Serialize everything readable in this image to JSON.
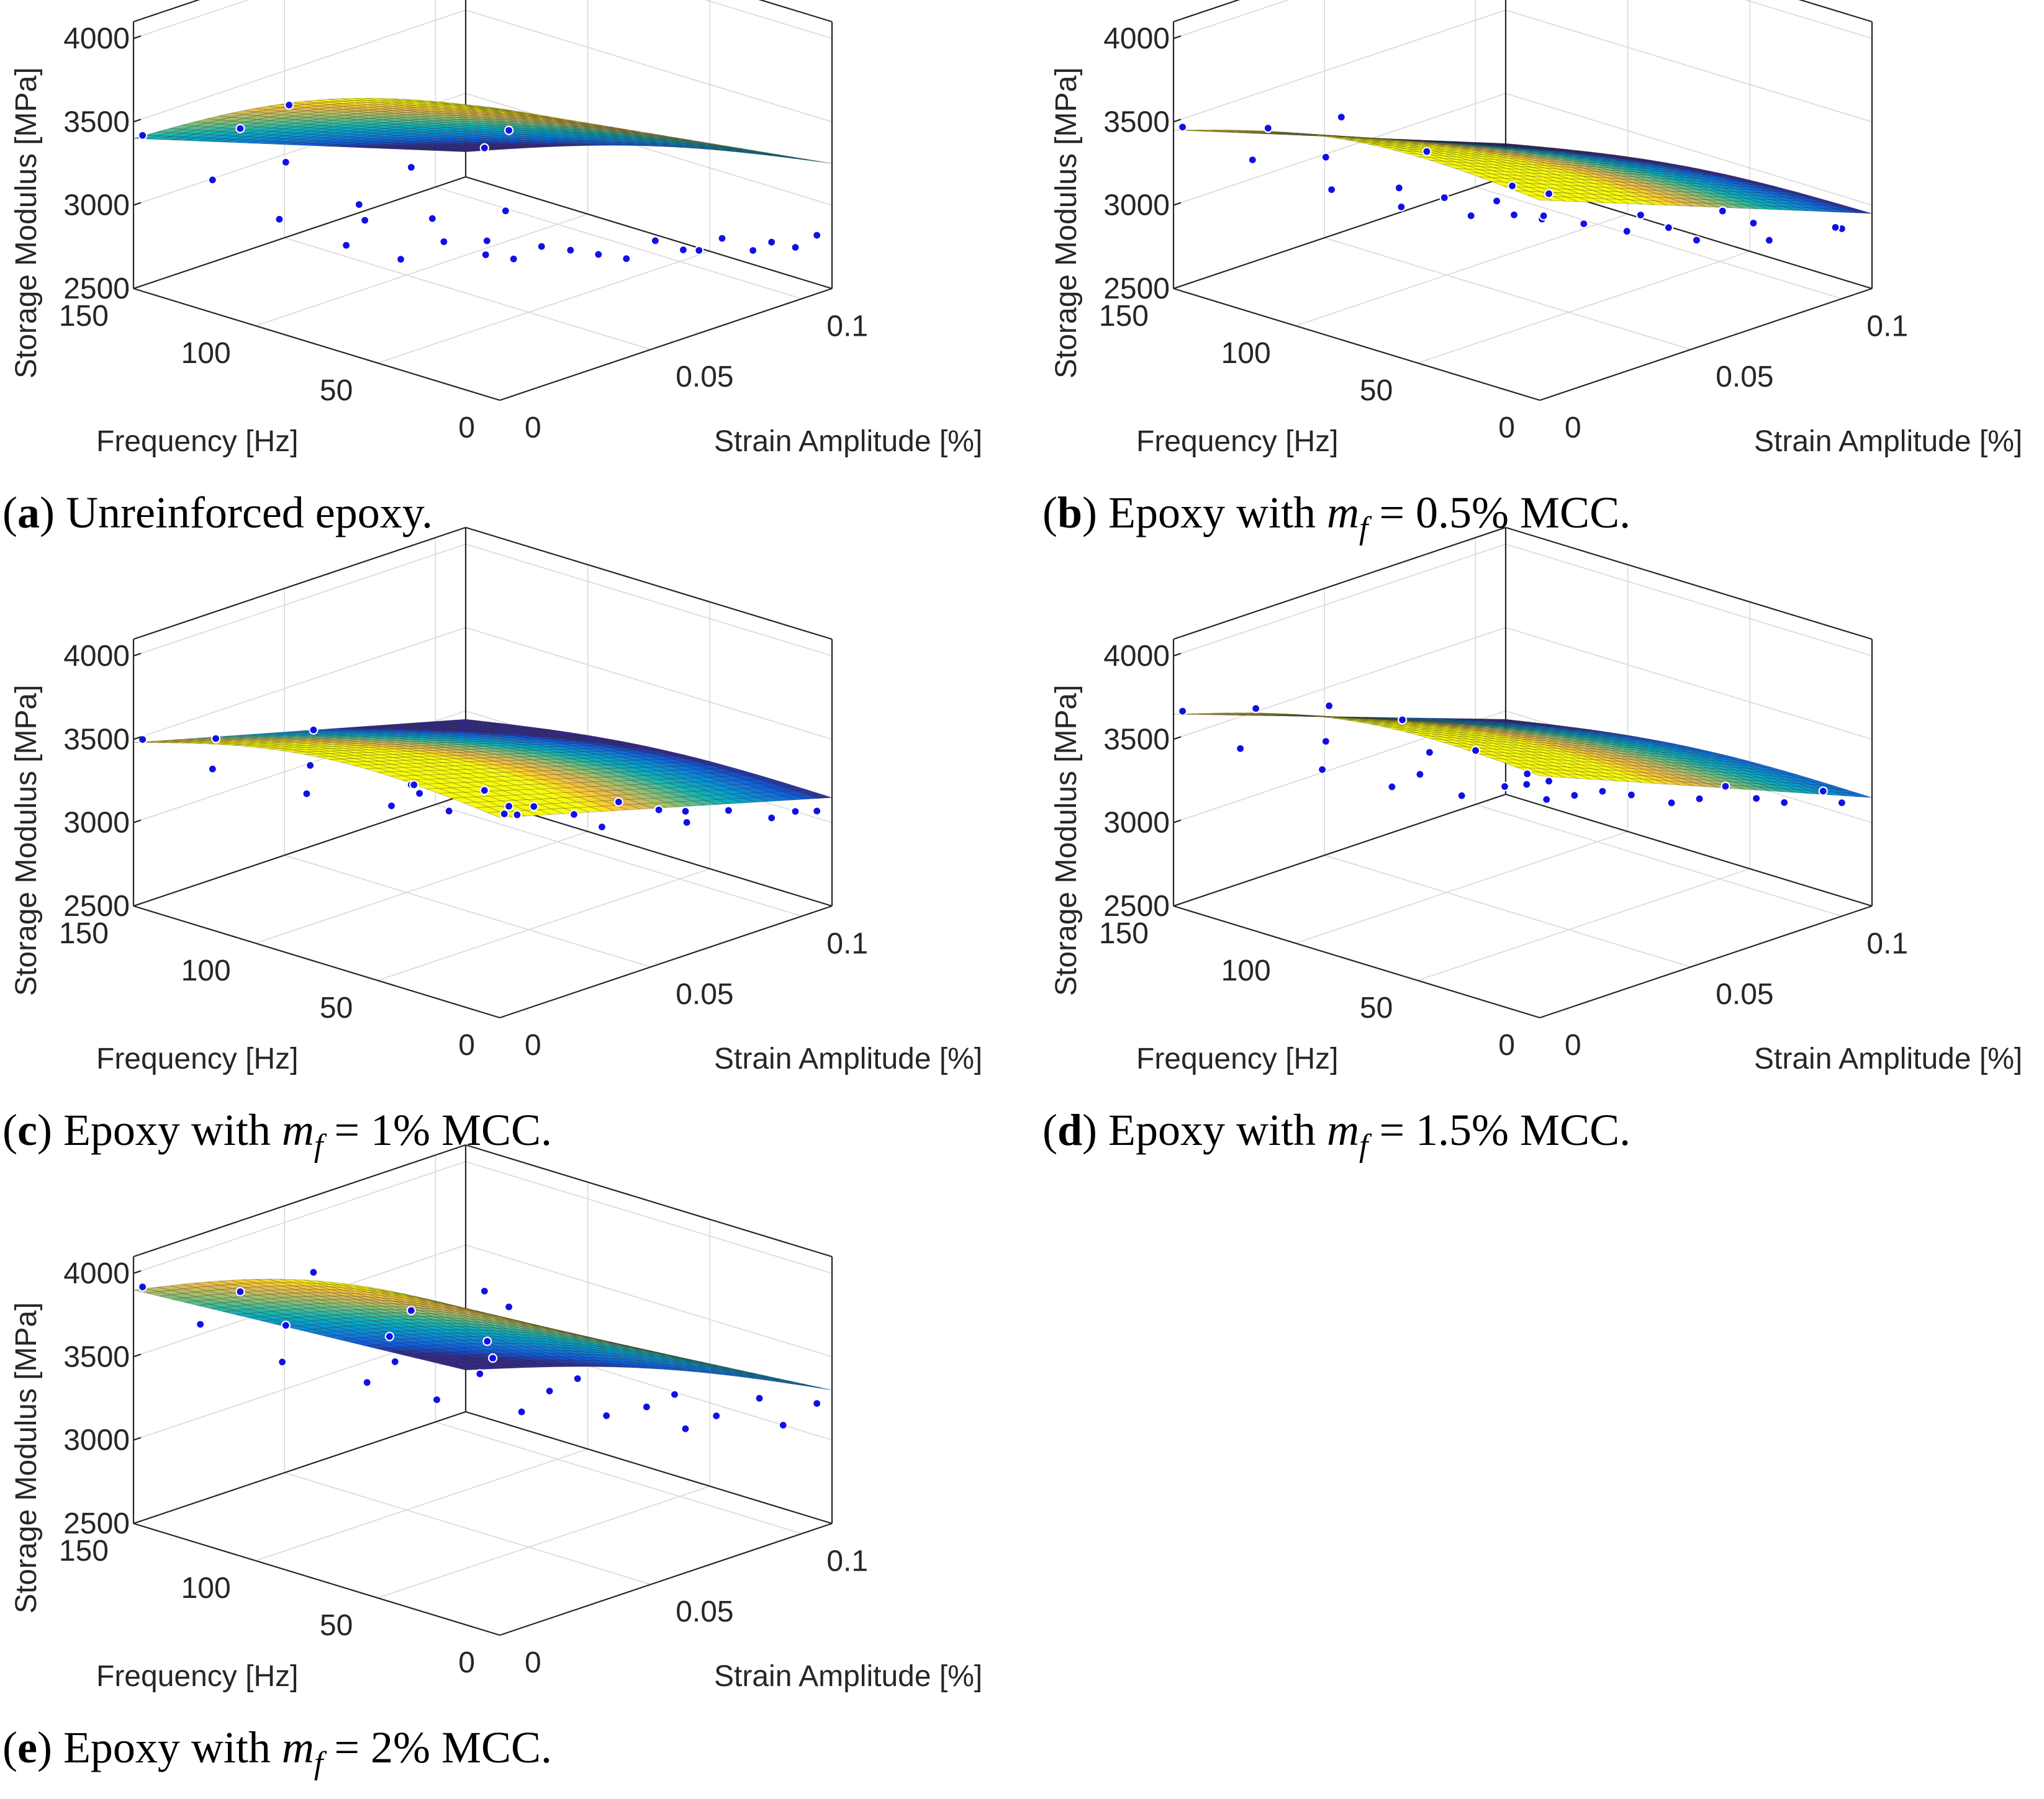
{
  "figure": {
    "panels": [
      {
        "id": "a",
        "caption": {
          "letter": "a",
          "text": " Unreinforced epoxy."
        },
        "zlabel": "Storage Modulus [MPa]",
        "xlabel": "Frequency [Hz]",
        "ylabel": "Strain Amplitude [%]",
        "zticks": [
          "2500",
          "3000",
          "3500",
          "4000"
        ],
        "freq_ticks": [
          "0",
          "50",
          "100",
          "150"
        ],
        "strain_ticks": [
          "0",
          "0.05",
          "0.1"
        ],
        "surface": {
          "colormap": "parula",
          "color_limits": [
            2900,
            4000
          ]
        },
        "grid": true
      },
      {
        "id": "b",
        "caption": {
          "letter": "b",
          "text_before": " Epoxy with ",
          "math_var": "m",
          "math_sub": "f",
          "text_after": " = 0.5% MCC."
        },
        "zlabel": "Storage Modulus [MPa]",
        "xlabel": "Frequency [Hz]",
        "ylabel": "Strain Amplitude [%]",
        "zticks": [
          "2500",
          "3000",
          "3500",
          "4000"
        ],
        "freq_ticks": [
          "0",
          "50",
          "100",
          "150"
        ],
        "strain_ticks": [
          "0",
          "0.05",
          "0.1"
        ],
        "surface": {
          "colormap": "parula",
          "color_limits": [
            2950,
            3450
          ]
        },
        "grid": true
      },
      {
        "id": "c",
        "caption": {
          "letter": "c",
          "text_before": " Epoxy with ",
          "math_var": "m",
          "math_sub": "f",
          "text_after": " = 1% MCC."
        },
        "zlabel": "Storage Modulus [MPa]",
        "xlabel": "Frequency [Hz]",
        "ylabel": "Strain Amplitude [%]",
        "zticks": [
          "2500",
          "3000",
          "3500",
          "4000"
        ],
        "freq_ticks": [
          "0",
          "50",
          "100",
          "150"
        ],
        "strain_ticks": [
          "0",
          "0.05",
          "0.1"
        ],
        "surface": {
          "colormap": "parula",
          "color_limits": [
            3150,
            3550
          ]
        },
        "grid": true
      },
      {
        "id": "d",
        "caption": {
          "letter": "d",
          "text_before": " Epoxy with ",
          "math_var": "m",
          "math_sub": "f",
          "text_after": " = 1.5% MCC."
        },
        "zlabel": "Storage Modulus [MPa]",
        "xlabel": "Frequency [Hz]",
        "ylabel": "Strain Amplitude [%]",
        "zticks": [
          "2500",
          "3000",
          "3500",
          "4000"
        ],
        "freq_ticks": [
          "0",
          "50",
          "100",
          "150"
        ],
        "strain_ticks": [
          "0",
          "0.05",
          "0.1"
        ],
        "surface": {
          "colormap": "parula",
          "color_limits": [
            3050,
            3700
          ]
        },
        "grid": true
      },
      {
        "id": "e",
        "caption": {
          "letter": "e",
          "text_before": " Epoxy with ",
          "math_var": "m",
          "math_sub": "f",
          "text_after": " = 2% MCC."
        },
        "zlabel": "Storage Modulus [MPa]",
        "xlabel": "Frequency [Hz]",
        "ylabel": "Strain Amplitude [%]",
        "zticks": [
          "2500",
          "3000",
          "3500",
          "4000"
        ],
        "freq_ticks": [
          "0",
          "50",
          "100",
          "150"
        ],
        "strain_ticks": [
          "0",
          "0.05",
          "0.1"
        ],
        "surface": {
          "colormap": "parula",
          "color_limits": [
            3000,
            4300
          ]
        },
        "grid": true
      }
    ]
  },
  "chart_data": [
    {
      "type": "surface3d",
      "panel": "a",
      "axes": {
        "frequency_Hz": [
          0,
          150
        ],
        "strain_amplitude_pct": [
          0,
          0.11
        ],
        "storage_modulus_MPa": [
          2500,
          4000
        ]
      },
      "surface_corners": {
        "f0_s0": 4250,
        "f150_s0": 3400,
        "f0_s011": 3250,
        "f150_s011": 2650
      },
      "points": [
        [
          150,
          0.003,
          3400
        ],
        [
          110,
          0.003,
          3620
        ],
        [
          90,
          0.003,
          3850
        ],
        [
          40,
          0.003,
          3700
        ],
        [
          10,
          0.003,
          3950
        ],
        [
          0,
          0.003,
          4100
        ],
        [
          130,
          0.01,
          3180
        ],
        [
          100,
          0.01,
          3420
        ],
        [
          70,
          0.01,
          3300
        ],
        [
          40,
          0.01,
          3350
        ],
        [
          10,
          0.01,
          3530
        ],
        [
          115,
          0.02,
          2950
        ],
        [
          80,
          0.02,
          3100
        ],
        [
          30,
          0.02,
          3200
        ],
        [
          100,
          0.03,
          2800
        ],
        [
          60,
          0.03,
          3000
        ],
        [
          20,
          0.03,
          3150
        ],
        [
          90,
          0.04,
          2700
        ],
        [
          50,
          0.045,
          2850
        ],
        [
          10,
          0.05,
          3000
        ],
        [
          80,
          0.06,
          2650
        ],
        [
          40,
          0.065,
          2800
        ],
        [
          5,
          0.07,
          2950
        ],
        [
          70,
          0.08,
          2600
        ],
        [
          30,
          0.085,
          2750
        ],
        [
          0,
          0.09,
          2900
        ],
        [
          60,
          0.1,
          2580
        ],
        [
          20,
          0.1,
          2700
        ],
        [
          0,
          0.105,
          2850
        ],
        [
          45,
          0.11,
          2600
        ],
        [
          15,
          0.11,
          2680
        ]
      ]
    },
    {
      "type": "surface3d",
      "panel": "b",
      "axes": {
        "frequency_Hz": [
          0,
          150
        ],
        "strain_amplitude_pct": [
          0,
          0.11
        ],
        "storage_modulus_MPa": [
          2500,
          4000
        ]
      },
      "surface_corners": {
        "f0_s0": 3700,
        "f150_s0": 3450,
        "f0_s011": 2950,
        "f150_s011": 2700
      },
      "points": [
        [
          150,
          0.003,
          3450
        ],
        [
          115,
          0.003,
          3600
        ],
        [
          85,
          0.003,
          3800
        ],
        [
          50,
          0.003,
          3750
        ],
        [
          15,
          0.003,
          3700
        ],
        [
          0,
          0.003,
          3720
        ],
        [
          130,
          0.01,
          3300
        ],
        [
          100,
          0.01,
          3450
        ],
        [
          70,
          0.01,
          3400
        ],
        [
          30,
          0.01,
          3500
        ],
        [
          110,
          0.02,
          3150
        ],
        [
          70,
          0.025,
          3250
        ],
        [
          30,
          0.025,
          3300
        ],
        [
          100,
          0.035,
          3000
        ],
        [
          60,
          0.04,
          3100
        ],
        [
          20,
          0.045,
          3150
        ],
        [
          90,
          0.05,
          2900
        ],
        [
          50,
          0.055,
          3000
        ],
        [
          10,
          0.06,
          3050
        ],
        [
          85,
          0.07,
          2800
        ],
        [
          40,
          0.075,
          2900
        ],
        [
          5,
          0.08,
          2950
        ],
        [
          70,
          0.09,
          2750
        ],
        [
          30,
          0.095,
          2850
        ],
        [
          0,
          0.1,
          2920
        ],
        [
          55,
          0.105,
          2750
        ],
        [
          15,
          0.11,
          2800
        ]
      ]
    },
    {
      "type": "surface3d",
      "panel": "c",
      "axes": {
        "frequency_Hz": [
          0,
          150
        ],
        "strain_amplitude_pct": [
          0,
          0.11
        ],
        "storage_modulus_MPa": [
          2500,
          4000
        ]
      },
      "surface_corners": {
        "f0_s0": 3700,
        "f150_s0": 3480,
        "f0_s011": 3150,
        "f150_s011": 2950
      },
      "points": [
        [
          150,
          0.003,
          3480
        ],
        [
          120,
          0.003,
          3620
        ],
        [
          80,
          0.003,
          3850
        ],
        [
          40,
          0.003,
          3700
        ],
        [
          10,
          0.003,
          3800
        ],
        [
          0,
          0.003,
          3750
        ],
        [
          130,
          0.01,
          3350
        ],
        [
          90,
          0.01,
          3550
        ],
        [
          50,
          0.012,
          3600
        ],
        [
          110,
          0.025,
          3200
        ],
        [
          70,
          0.03,
          3350
        ],
        [
          30,
          0.03,
          3400
        ],
        [
          100,
          0.045,
          3050
        ],
        [
          60,
          0.05,
          3150
        ],
        [
          20,
          0.05,
          3250
        ],
        [
          95,
          0.06,
          2950
        ],
        [
          50,
          0.065,
          3100
        ],
        [
          10,
          0.07,
          3200
        ],
        [
          85,
          0.08,
          2900
        ],
        [
          40,
          0.085,
          3050
        ],
        [
          0,
          0.09,
          3150
        ],
        [
          75,
          0.1,
          2850
        ],
        [
          30,
          0.1,
          3000
        ],
        [
          0,
          0.105,
          3100
        ],
        [
          60,
          0.11,
          2800
        ],
        [
          15,
          0.11,
          3000
        ]
      ]
    },
    {
      "type": "surface3d",
      "panel": "d",
      "axes": {
        "frequency_Hz": [
          0,
          150
        ],
        "strain_amplitude_pct": [
          0,
          0.11
        ],
        "storage_modulus_MPa": [
          2500,
          4000
        ]
      },
      "surface_corners": {
        "f0_s0": 3950,
        "f150_s0": 3650,
        "f0_s011": 3150,
        "f150_s011": 2950
      },
      "points": [
        [
          150,
          0.003,
          3650
        ],
        [
          120,
          0.003,
          3800
        ],
        [
          90,
          0.003,
          3950
        ],
        [
          60,
          0.003,
          4000
        ],
        [
          30,
          0.003,
          3950
        ],
        [
          0,
          0.003,
          3900
        ],
        [
          135,
          0.01,
          3450
        ],
        [
          100,
          0.01,
          3650
        ],
        [
          60,
          0.012,
          3750
        ],
        [
          20,
          0.012,
          3800
        ],
        [
          120,
          0.025,
          3300
        ],
        [
          80,
          0.025,
          3450
        ],
        [
          40,
          0.028,
          3550
        ],
        [
          110,
          0.04,
          3150
        ],
        [
          70,
          0.045,
          3300
        ],
        [
          30,
          0.045,
          3450
        ],
        [
          100,
          0.055,
          3050
        ],
        [
          60,
          0.06,
          3200
        ],
        [
          15,
          0.065,
          3350
        ],
        [
          90,
          0.075,
          2950
        ],
        [
          45,
          0.08,
          3100
        ],
        [
          5,
          0.085,
          3250
        ],
        [
          80,
          0.095,
          2900
        ],
        [
          35,
          0.1,
          3050
        ],
        [
          0,
          0.1,
          3180
        ],
        [
          60,
          0.11,
          2950
        ],
        [
          20,
          0.11,
          3100
        ]
      ]
    },
    {
      "type": "surface3d",
      "panel": "e",
      "axes": {
        "frequency_Hz": [
          0,
          150
        ],
        "strain_amplitude_pct": [
          0,
          0.11
        ],
        "storage_modulus_MPa": [
          2500,
          4000
        ]
      },
      "surface_corners": {
        "f0_s0": 4400,
        "f150_s0": 3900,
        "f0_s011": 3300,
        "f150_s011": 2750
      },
      "points": [
        [
          150,
          0.003,
          3900
        ],
        [
          110,
          0.003,
          4050
        ],
        [
          80,
          0.003,
          4300
        ],
        [
          40,
          0.003,
          4250
        ],
        [
          10,
          0.003,
          4500
        ],
        [
          0,
          0.003,
          4450
        ],
        [
          135,
          0.01,
          3700
        ],
        [
          100,
          0.01,
          3850
        ],
        [
          60,
          0.012,
          3950
        ],
        [
          20,
          0.012,
          4100
        ],
        [
          120,
          0.025,
          3450
        ],
        [
          80,
          0.03,
          3600
        ],
        [
          40,
          0.03,
          3800
        ],
        [
          110,
          0.045,
          3250
        ],
        [
          70,
          0.05,
          3450
        ],
        [
          30,
          0.05,
          3600
        ],
        [
          100,
          0.06,
          3100
        ],
        [
          60,
          0.065,
          3300
        ],
        [
          15,
          0.07,
          3450
        ],
        [
          90,
          0.08,
          2950
        ],
        [
          45,
          0.085,
          3150
        ],
        [
          5,
          0.09,
          3350
        ],
        [
          80,
          0.1,
          2850
        ],
        [
          35,
          0.1,
          3050
        ],
        [
          0,
          0.105,
          3250
        ],
        [
          60,
          0.11,
          2800
        ],
        [
          20,
          0.11,
          3000
        ]
      ]
    }
  ]
}
